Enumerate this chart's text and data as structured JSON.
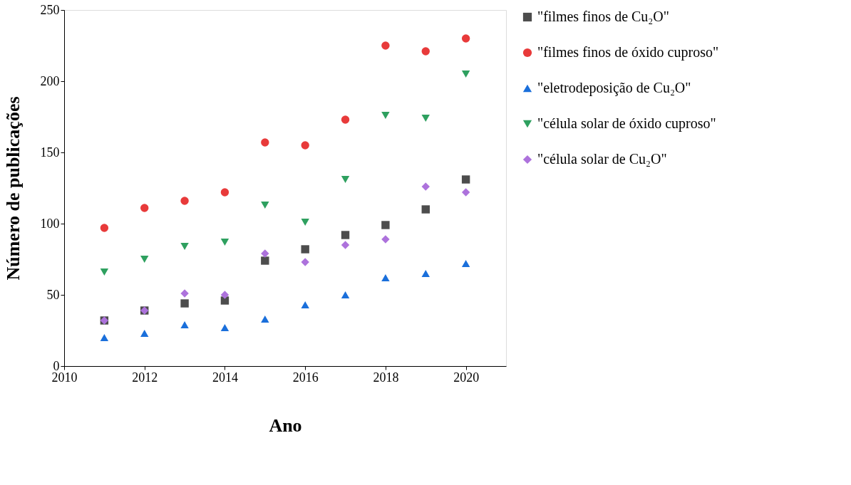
{
  "chart_data": {
    "type": "scatter",
    "xlabel": "Ano",
    "ylabel": "Número de publicações",
    "x": [
      2011,
      2012,
      2013,
      2014,
      2015,
      2016,
      2017,
      2018,
      2019,
      2020
    ],
    "series": [
      {
        "name": "\"filmes finos de Cu₂O\"",
        "color": "#4d4d4d",
        "marker": "square",
        "values": [
          32,
          39,
          44,
          46,
          74,
          82,
          92,
          99,
          110,
          131
        ]
      },
      {
        "name": "\"filmes finos de óxido cuproso\"",
        "color": "#e83a3a",
        "marker": "circle",
        "values": [
          97,
          111,
          116,
          122,
          157,
          155,
          173,
          225,
          221,
          230
        ]
      },
      {
        "name": "\"eletrodeposição de Cu₂O\"",
        "color": "#1a6fdb",
        "marker": "triangle",
        "values": [
          20,
          23,
          29,
          27,
          33,
          43,
          50,
          62,
          65,
          72
        ]
      },
      {
        "name": "\"célula solar de óxido cuproso\"",
        "color": "#2ea05f",
        "marker": "triangle-down",
        "values": [
          66,
          75,
          84,
          87,
          113,
          101,
          131,
          176,
          174,
          205
        ]
      },
      {
        "name": "\"célula solar de Cu₂O\"",
        "color": "#ad72dc",
        "marker": "diamond",
        "values": [
          32,
          39,
          51,
          50,
          79,
          73,
          85,
          89,
          126,
          122
        ]
      }
    ],
    "xlim": [
      2010,
      2021
    ],
    "xticks": [
      2010,
      2012,
      2014,
      2016,
      2018,
      2020
    ],
    "ylim": [
      0,
      250
    ],
    "yticks": [
      0,
      50,
      100,
      150,
      200,
      250
    ],
    "grid": false,
    "legend": "right"
  }
}
